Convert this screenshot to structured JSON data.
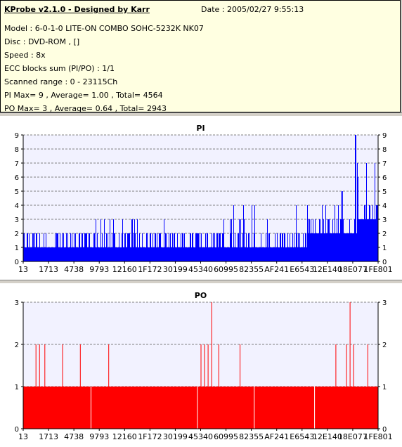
{
  "info": {
    "title": "KProbe v2.1.0 - Designed by Karr",
    "date": "Date : 2005/02/27 9:55:13",
    "lines": [
      "Model : 6-0-1-0 LITE-ON COMBO SOHC-5232K NK07",
      "Disc : DVD-ROM ,  []",
      "Speed : 8x",
      "ECC blocks sum (PI/PO) : 1/1",
      "Scanned range : 0 - 23115Ch",
      "PI Max= 9 , Average= 1.00 , Total= 4564",
      "PO Max= 3 , Average= 0.64 , Total= 2943"
    ]
  },
  "colors": {
    "pi": "#0000ff",
    "po": "#ff0000",
    "plot_bg": "#f2f2ff"
  },
  "chart_data": [
    {
      "type": "bar",
      "title": "PI",
      "ylim": [
        0,
        9
      ],
      "yticks": [
        "0",
        "1",
        "2",
        "3",
        "4",
        "5",
        "6",
        "7",
        "8",
        "9"
      ],
      "xticks": [
        "13",
        "1713",
        "4738",
        "9793",
        "12160",
        "1F172",
        "30199",
        "45340",
        "60995",
        "82355",
        "AF241",
        "E6543",
        "12E140",
        "18E077",
        "1FE801"
      ],
      "profile": [
        {
          "x": 0.0,
          "base": 1,
          "spikes": [
            2
          ]
        },
        {
          "x": 0.2,
          "base": 1,
          "spikes": [
            2,
            3
          ]
        },
        {
          "x": 0.4,
          "base": 1,
          "spikes": [
            2
          ]
        },
        {
          "x": 0.54,
          "base": 1,
          "spikes": [
            2,
            3,
            4
          ]
        },
        {
          "x": 0.68,
          "base": 1,
          "spikes": [
            2,
            3,
            4
          ]
        },
        {
          "x": 0.8,
          "base": 2,
          "spikes": [
            3,
            4,
            5
          ]
        },
        {
          "x": 0.9,
          "base": 2,
          "spikes": [
            3,
            4,
            5,
            6
          ]
        },
        {
          "x": 0.94,
          "base": 3,
          "spikes": [
            4,
            5,
            6,
            7
          ]
        },
        {
          "x": 1.0,
          "base": 3,
          "spikes": [
            5,
            6,
            7,
            9
          ]
        }
      ],
      "peak": {
        "x": 0.936,
        "value": 9
      }
    },
    {
      "type": "bar",
      "title": "PO",
      "ylim": [
        0,
        3
      ],
      "yticks": [
        "0",
        "1",
        "2",
        "3"
      ],
      "xticks": [
        "13",
        "1713",
        "4738",
        "9793",
        "12160",
        "1F172",
        "30199",
        "45340",
        "60995",
        "82355",
        "AF241",
        "E6543",
        "12E140",
        "18E077",
        "1FE801"
      ],
      "base": 1,
      "gaps": [
        0.19,
        0.49,
        0.65,
        0.82
      ],
      "spikes2": [
        0.035,
        0.045,
        0.06,
        0.11,
        0.16,
        0.24,
        0.5,
        0.51,
        0.52,
        0.55,
        0.61,
        0.88,
        0.91,
        0.93,
        0.97
      ],
      "spikes3": [
        0.53,
        0.92
      ]
    }
  ]
}
